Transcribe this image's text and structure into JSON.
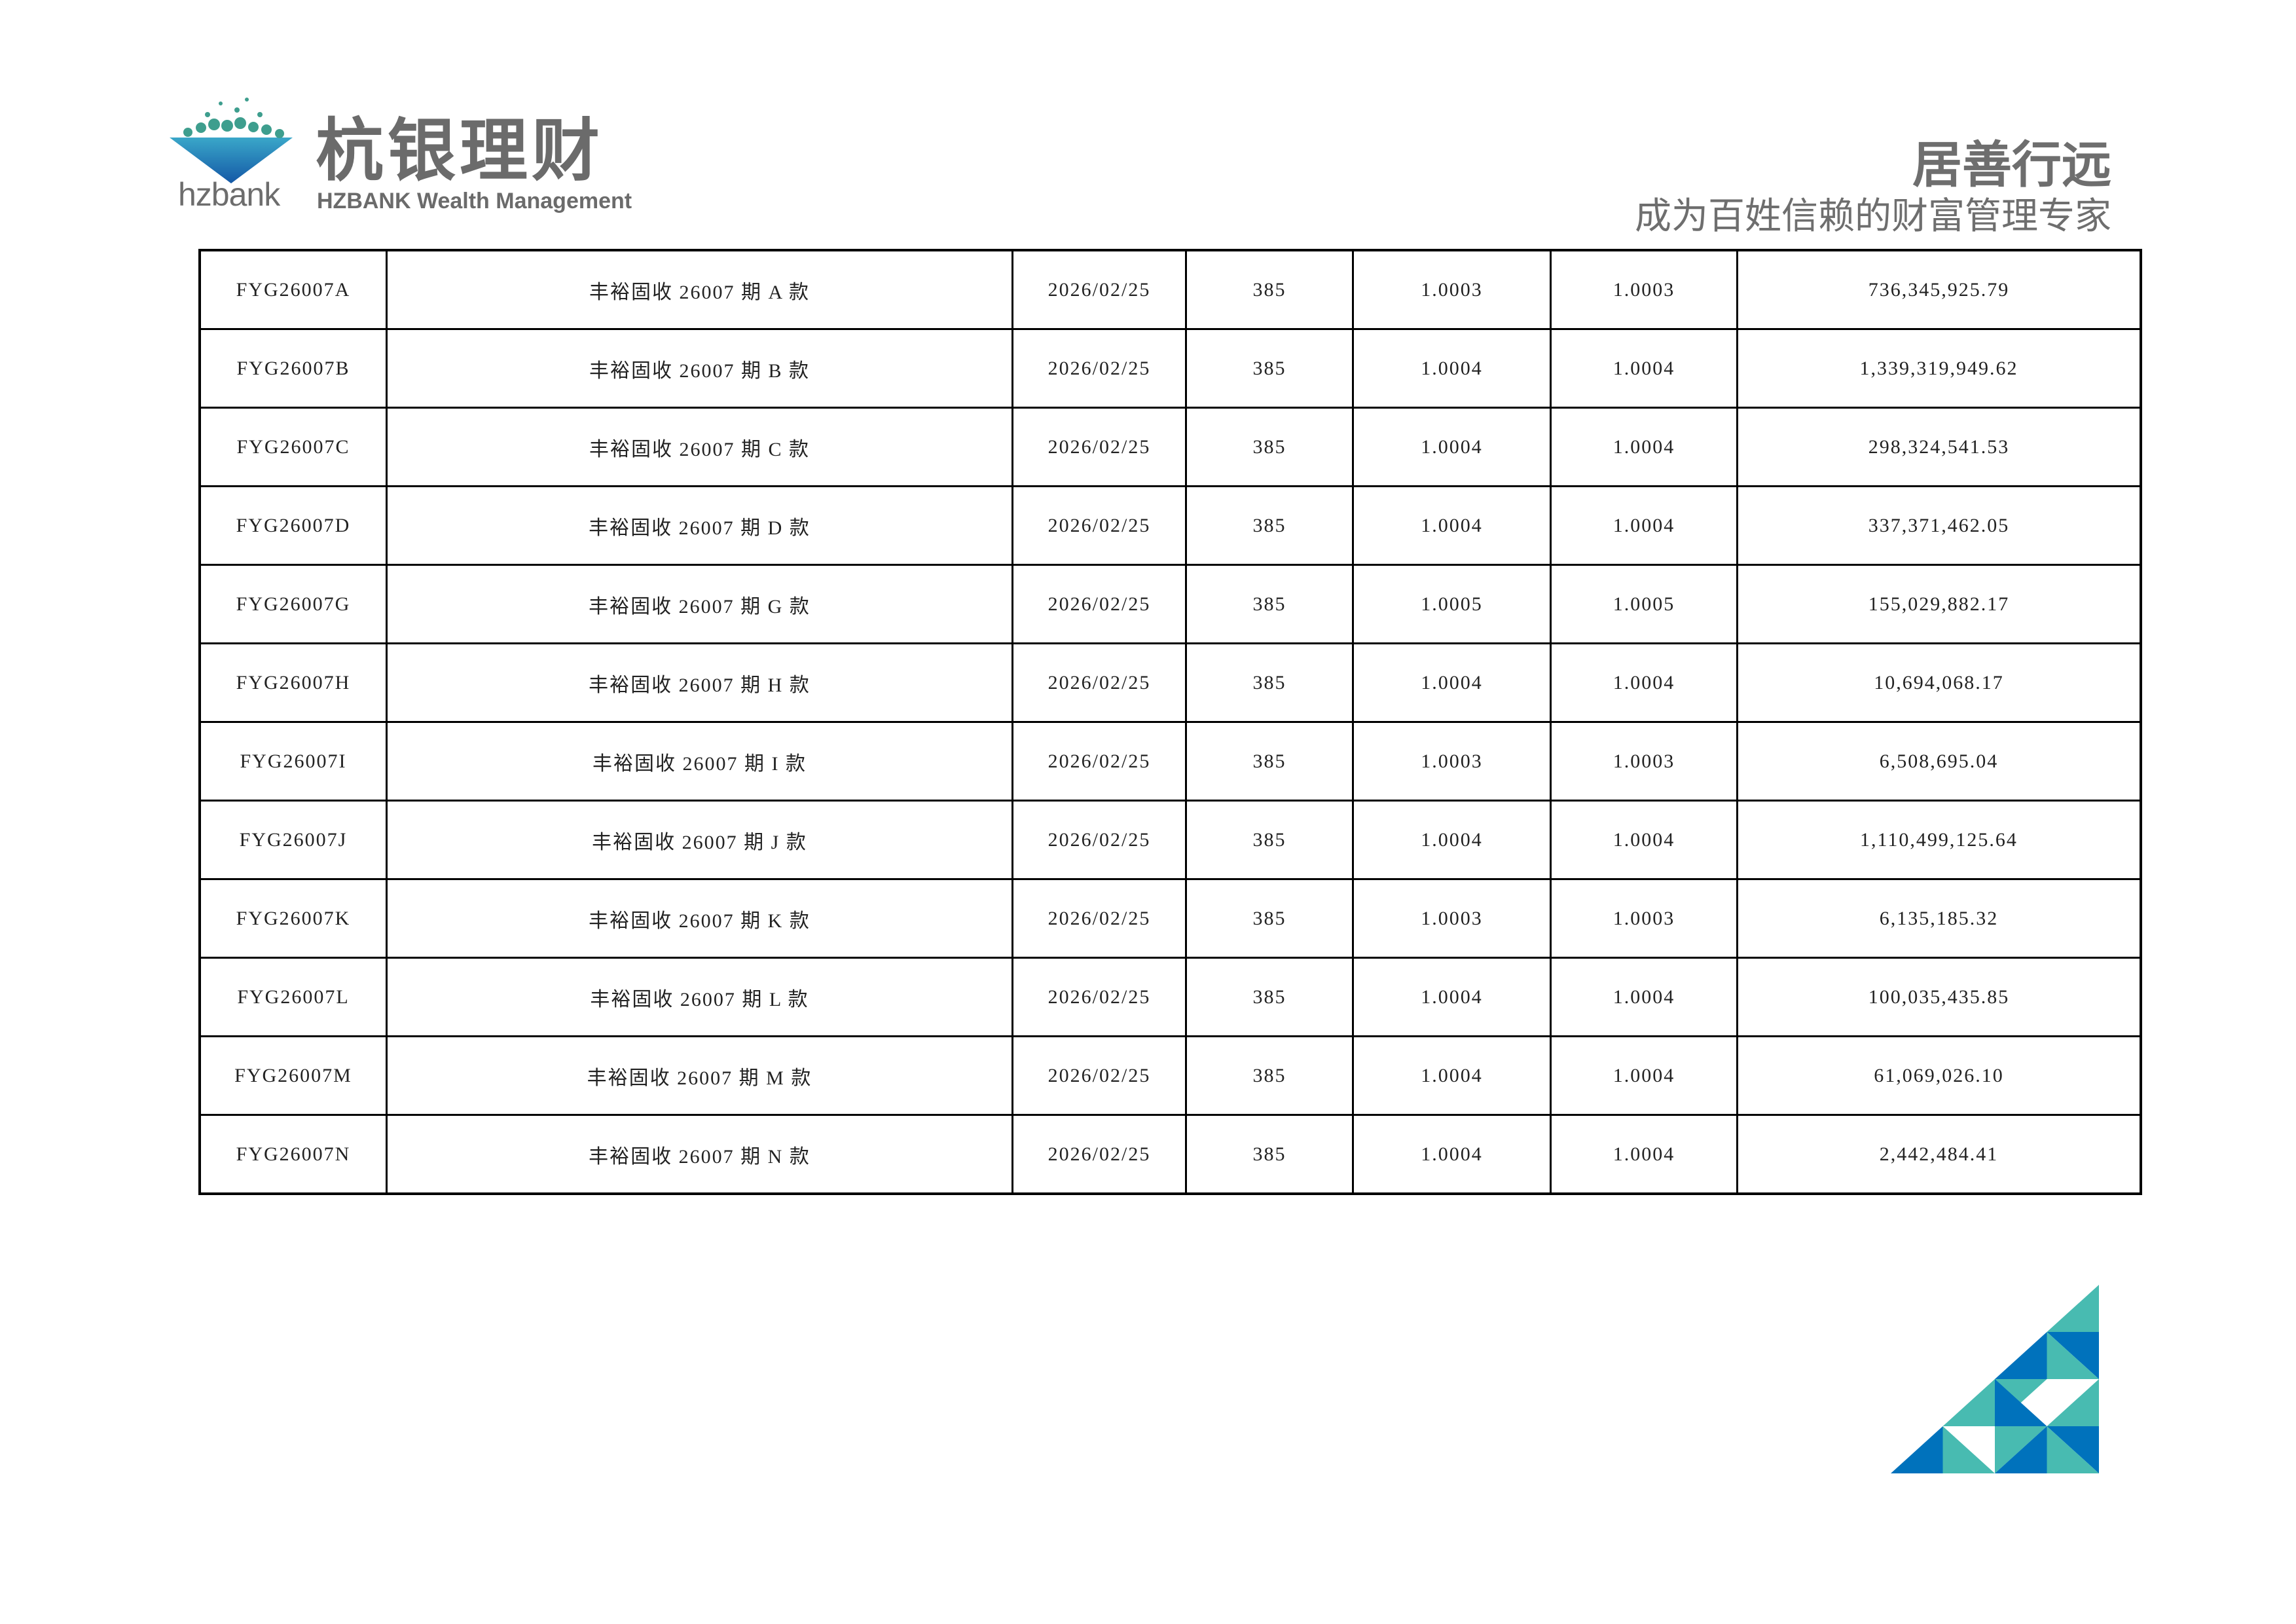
{
  "header": {
    "logo": {
      "latin": "hzbank",
      "name_cn": "杭银理财",
      "name_en": "HZBANK Wealth Management"
    },
    "slogan": "居善行远",
    "tagline": "成为百姓信赖的财富管理专家"
  },
  "colors": {
    "brand_blue": "#0072bc",
    "brand_teal": "#48bbb1",
    "text_gray": "#6b6b6b"
  },
  "table": {
    "rows": [
      [
        "FYG26007A",
        "丰裕固收 26007 期 A 款",
        "2026/02/25",
        "385",
        "1.0003",
        "1.0003",
        "736,345,925.79"
      ],
      [
        "FYG26007B",
        "丰裕固收 26007 期 B 款",
        "2026/02/25",
        "385",
        "1.0004",
        "1.0004",
        "1,339,319,949.62"
      ],
      [
        "FYG26007C",
        "丰裕固收 26007 期 C 款",
        "2026/02/25",
        "385",
        "1.0004",
        "1.0004",
        "298,324,541.53"
      ],
      [
        "FYG26007D",
        "丰裕固收 26007 期 D 款",
        "2026/02/25",
        "385",
        "1.0004",
        "1.0004",
        "337,371,462.05"
      ],
      [
        "FYG26007G",
        "丰裕固收 26007 期 G 款",
        "2026/02/25",
        "385",
        "1.0005",
        "1.0005",
        "155,029,882.17"
      ],
      [
        "FYG26007H",
        "丰裕固收 26007 期 H 款",
        "2026/02/25",
        "385",
        "1.0004",
        "1.0004",
        "10,694,068.17"
      ],
      [
        "FYG26007I",
        "丰裕固收 26007 期 I 款",
        "2026/02/25",
        "385",
        "1.0003",
        "1.0003",
        "6,508,695.04"
      ],
      [
        "FYG26007J",
        "丰裕固收 26007 期 J 款",
        "2026/02/25",
        "385",
        "1.0004",
        "1.0004",
        "1,110,499,125.64"
      ],
      [
        "FYG26007K",
        "丰裕固收 26007 期 K 款",
        "2026/02/25",
        "385",
        "1.0003",
        "1.0003",
        "6,135,185.32"
      ],
      [
        "FYG26007L",
        "丰裕固收 26007 期 L 款",
        "2026/02/25",
        "385",
        "1.0004",
        "1.0004",
        "100,035,435.85"
      ],
      [
        "FYG26007M",
        "丰裕固收 26007 期 M 款",
        "2026/02/25",
        "385",
        "1.0004",
        "1.0004",
        "61,069,026.10"
      ],
      [
        "FYG26007N",
        "丰裕固收 26007 期 N 款",
        "2026/02/25",
        "385",
        "1.0004",
        "1.0004",
        "2,442,484.41"
      ]
    ]
  }
}
